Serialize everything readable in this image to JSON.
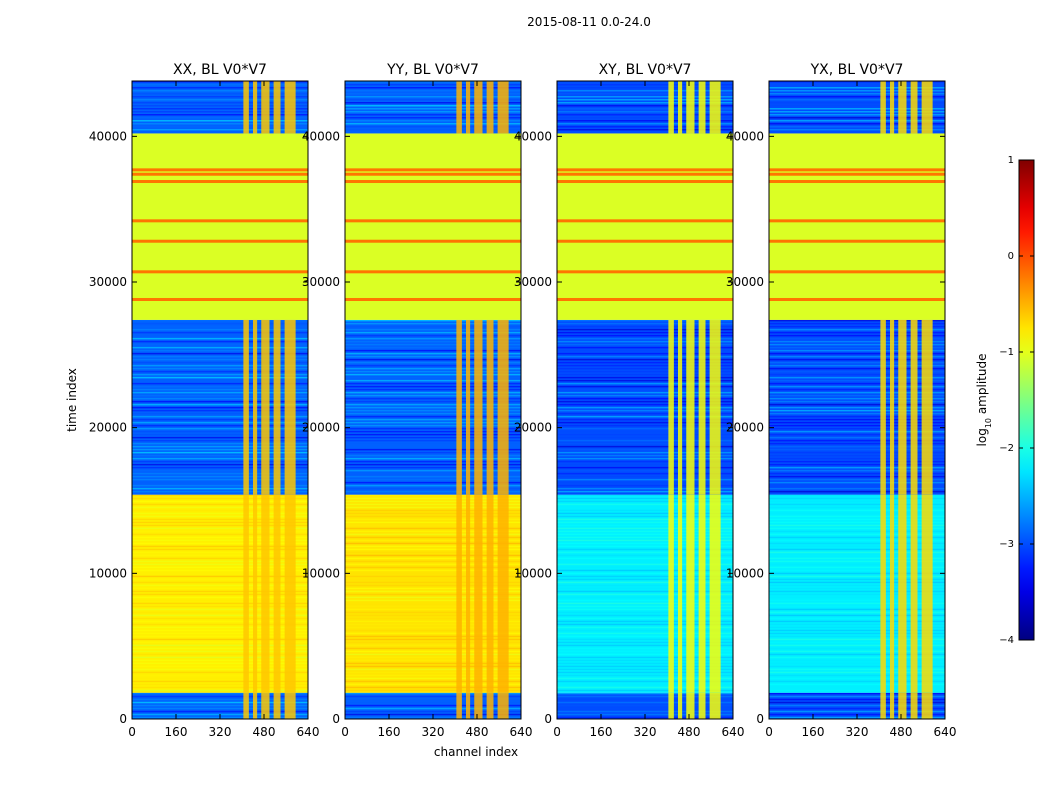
{
  "chart_data": {
    "type": "heatmap",
    "suptitle": "2015-08-11 0.0-24.0",
    "xlabel": "channel index",
    "ylabel": "time index",
    "xlim": [
      0,
      640
    ],
    "ylim": [
      0,
      43800
    ],
    "xticks": [
      0,
      160,
      320,
      480,
      640
    ],
    "yticks": [
      0,
      10000,
      20000,
      30000,
      40000
    ],
    "colormap": "jet",
    "colorbar": {
      "label_main": "log",
      "label_sub": "10",
      "label_rest": " amplitude",
      "range": [
        -4,
        1
      ],
      "ticks": [
        1,
        0,
        -1,
        -2,
        -3,
        -4
      ],
      "tick_labels": [
        "1",
        "0",
        "−1",
        "−2",
        "−3",
        "−4"
      ]
    },
    "panels": [
      {
        "title": "XX, BL V0*V7",
        "low_block_value": -0.8,
        "noise_value": -2.9,
        "flag_value": -1.05,
        "bright_channel_value": -0.6,
        "bright_channels": [
          [
            405,
            425
          ],
          [
            440,
            455
          ],
          [
            470,
            500
          ],
          [
            515,
            540
          ],
          [
            555,
            595
          ]
        ]
      },
      {
        "title": "YY, BL V0*V7",
        "low_block_value": -0.75,
        "noise_value": -2.9,
        "flag_value": -1.05,
        "bright_channel_value": -0.5,
        "bright_channels": [
          [
            405,
            425
          ],
          [
            440,
            455
          ],
          [
            470,
            500
          ],
          [
            515,
            540
          ],
          [
            555,
            595
          ]
        ]
      },
      {
        "title": "XY, BL V0*V7",
        "low_block_value": -2.2,
        "noise_value": -3.0,
        "flag_value": -1.05,
        "bright_channel_value": -0.9,
        "bright_channels": [
          [
            405,
            425
          ],
          [
            440,
            455
          ],
          [
            470,
            500
          ],
          [
            515,
            540
          ],
          [
            555,
            595
          ]
        ]
      },
      {
        "title": "YX, BL V0*V7",
        "low_block_value": -2.2,
        "noise_value": -3.0,
        "flag_value": -1.05,
        "bright_channel_value": -0.7,
        "bright_channels": [
          [
            405,
            425
          ],
          [
            440,
            455
          ],
          [
            470,
            500
          ],
          [
            515,
            540
          ],
          [
            555,
            595
          ]
        ]
      }
    ],
    "time_regions": [
      {
        "from": 0,
        "to": 1800,
        "kind": "noise"
      },
      {
        "from": 1800,
        "to": 15400,
        "kind": "low_block"
      },
      {
        "from": 15400,
        "to": 27400,
        "kind": "noise"
      },
      {
        "from": 27400,
        "to": 40200,
        "kind": "flagged"
      },
      {
        "from": 40200,
        "to": 43800,
        "kind": "noise"
      }
    ],
    "flag_lines": [
      28800,
      30700,
      32800,
      34200,
      36900,
      37400,
      37700
    ]
  }
}
